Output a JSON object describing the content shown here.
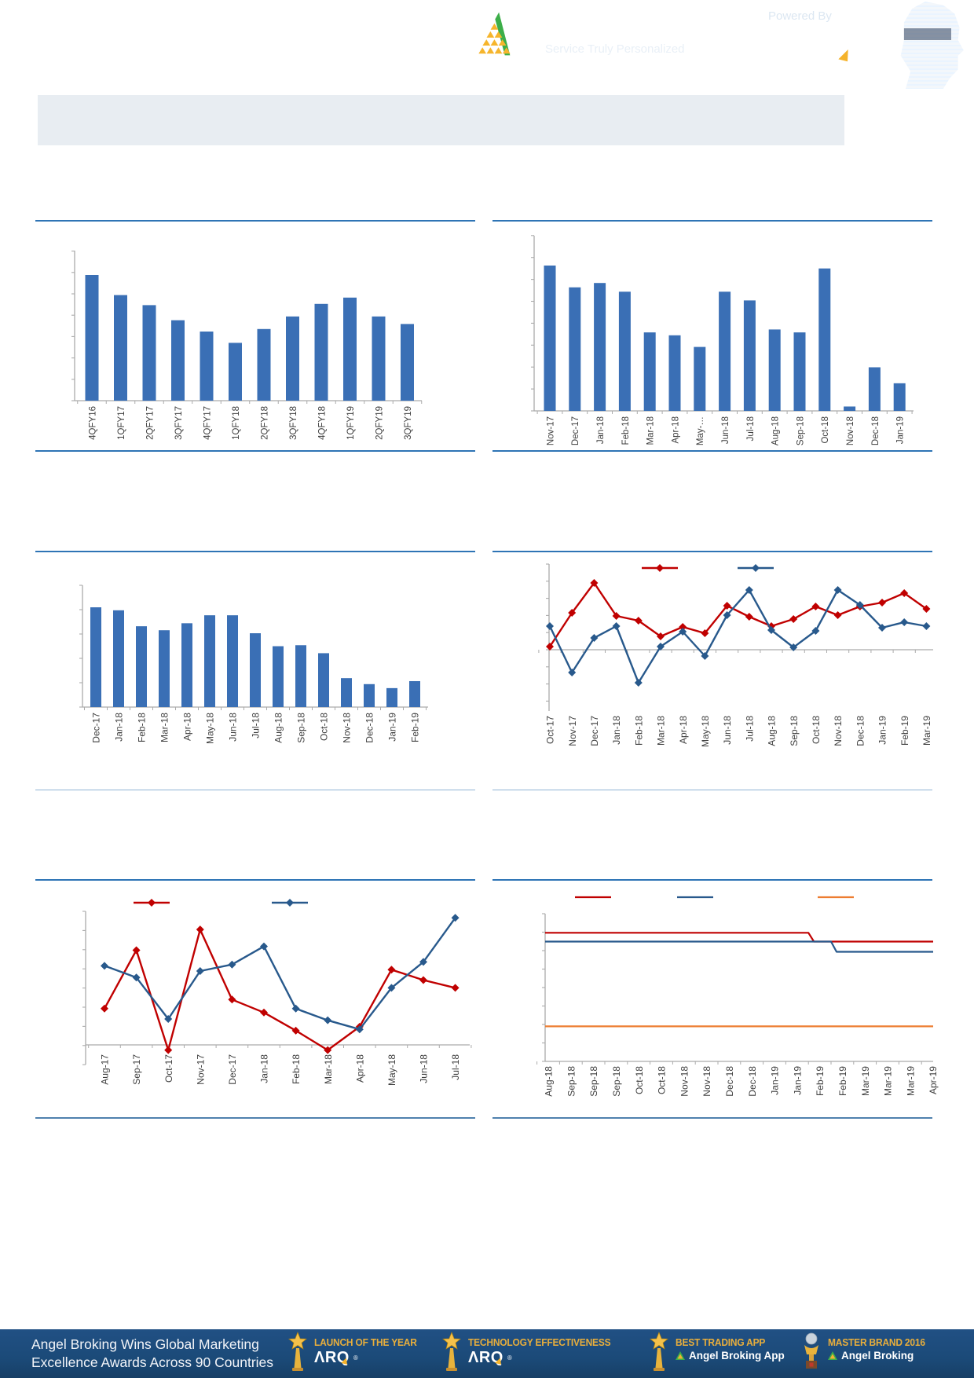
{
  "page": {
    "bg": "#FFFFFF"
  },
  "header": {
    "brand_name": "Angel Broking",
    "brand_reg": "®",
    "tagline": "Service Truly Personalized",
    "powered_by_label": "Powered By",
    "arq_wordmark": "ΛRQ",
    "arq_reg": "®",
    "colors": {
      "bg": "#164A7C",
      "logo_green": "#3CAE49",
      "logo_gold": "#F6B52C",
      "text": "#FFFFFF"
    }
  },
  "title_banner": {
    "text": ""
  },
  "chart_data": [
    {
      "id": "bar-quarterly",
      "type": "bar",
      "title": "",
      "xlabel": "",
      "ylabel": "",
      "yaxis_labels_visible": false,
      "note": "y-axis unlabeled in source; values are relative estimates (tallest bar = 100)",
      "bar_color": "#3A6FB5",
      "categories": [
        "4QFY16",
        "1QFY17",
        "2QFY17",
        "3QFY17",
        "4QFY17",
        "1QFY18",
        "2QFY18",
        "3QFY18",
        "4QFY18",
        "1QFY19",
        "2QFY19",
        "3QFY19"
      ],
      "values": [
        100,
        84,
        76,
        64,
        55,
        46,
        57,
        67,
        77,
        82,
        67,
        61
      ]
    },
    {
      "id": "bar-monthly-nov17-jan19",
      "type": "bar",
      "title": "",
      "xlabel": "",
      "ylabel": "",
      "yaxis_labels_visible": false,
      "note": "y-axis unlabeled in source; values are relative estimates (tallest bar = 100)",
      "bar_color": "#3A6FB5",
      "categories": [
        "Nov-17",
        "Dec-17",
        "Jan-18",
        "Feb-18",
        "Mar-18",
        "Apr-18",
        "May-…",
        "Jun-18",
        "Jul-18",
        "Aug-18",
        "Sep-18",
        "Oct-18",
        "Nov-18",
        "Dec-18",
        "Jan-19"
      ],
      "values": [
        100,
        85,
        88,
        82,
        54,
        52,
        44,
        82,
        76,
        56,
        54,
        98,
        3,
        30,
        19
      ]
    },
    {
      "id": "bar-monthly-dec17-feb19",
      "type": "bar",
      "title": "",
      "xlabel": "",
      "ylabel": "",
      "yaxis_labels_visible": false,
      "note": "y-axis unlabeled in source; values are relative estimates (tallest bar = 100)",
      "bar_color": "#3A6FB5",
      "categories": [
        "Dec-17",
        "Jan-18",
        "Feb-18",
        "Mar-18",
        "Apr-18",
        "May-18",
        "Jun-18",
        "Jul-18",
        "Aug-18",
        "Sep-18",
        "Oct-18",
        "Nov-18",
        "Dec-18",
        "Jan-19",
        "Feb-19"
      ],
      "values": [
        100,
        97,
        81,
        77,
        84,
        92,
        92,
        74,
        61,
        62,
        54,
        29,
        23,
        19,
        26
      ]
    },
    {
      "id": "line-monthly-oct17-mar19",
      "type": "line",
      "title": "",
      "xlabel": "",
      "ylabel": "",
      "yaxis_labels_visible": false,
      "legend_position": "top",
      "legend_labels_visible": false,
      "note": "two-series line chart crossing a zero axis; values estimated in relative units",
      "categories": [
        "Oct-17",
        "Nov-17",
        "Dec-17",
        "Jan-18",
        "Feb-18",
        "Mar-18",
        "Apr-18",
        "May-18",
        "Jun-18",
        "Jul-18",
        "Aug-18",
        "Sep-18",
        "Oct-18",
        "Nov-18",
        "Dec-18",
        "Jan-19",
        "Feb-19",
        "Mar-19"
      ],
      "series": [
        {
          "name": "series-red",
          "color": "#C00000",
          "marker": "diamond",
          "values": [
            4,
            47,
            85,
            43,
            37,
            17,
            29,
            21,
            56,
            42,
            30,
            39,
            55,
            44,
            55,
            60,
            72,
            52
          ]
        },
        {
          "name": "series-blue",
          "color": "#28598C",
          "marker": "diamond",
          "values": [
            30,
            -29,
            15,
            30,
            -42,
            4,
            23,
            -8,
            44,
            76,
            25,
            3,
            24,
            76,
            57,
            28,
            35,
            30
          ]
        }
      ]
    },
    {
      "id": "line-monthly-aug17-jul18",
      "type": "line",
      "title": "",
      "xlabel": "",
      "ylabel": "",
      "yaxis_labels_visible": false,
      "legend_position": "top",
      "legend_labels_visible": false,
      "note": "two-series line chart; red dips slightly below zero at Oct-17 and Mar-18; values estimated",
      "categories": [
        "Aug-17",
        "Sep-17",
        "Oct-17",
        "Nov-17",
        "Dec-17",
        "Jan-18",
        "Feb-18",
        "Mar-18",
        "Apr-18",
        "May-18",
        "Jun-18",
        "Jul-18"
      ],
      "series": [
        {
          "name": "series-red",
          "color": "#C00000",
          "marker": "diamond",
          "values": [
            28,
            73,
            -4,
            89,
            35,
            25,
            11,
            -4,
            14,
            58,
            50,
            44
          ]
        },
        {
          "name": "series-blue",
          "color": "#28598C",
          "marker": "diamond",
          "values": [
            61,
            52,
            20,
            57,
            62,
            76,
            28,
            19,
            12,
            44,
            64,
            98
          ]
        }
      ]
    },
    {
      "id": "line-step-aug18-apr19",
      "type": "line",
      "title": "",
      "xlabel": "",
      "ylabel": "",
      "yaxis_labels_visible": false,
      "legend_position": "top",
      "legend_labels_visible": false,
      "note": "three flat step lines; red steps down near Feb-19, blue steps down just after, orange constant; values estimated",
      "categories": [
        "Aug-18",
        "Sep-18",
        "Sep-18",
        "Sep-18",
        "Oct-18",
        "Oct-18",
        "Nov-18",
        "Nov-18",
        "Dec-18",
        "Dec-18",
        "Jan-19",
        "Jan-19",
        "Feb-19",
        "Feb-19",
        "Mar-19",
        "Mar-19",
        "Mar-19",
        "Apr-19"
      ],
      "series": [
        {
          "name": "series-red",
          "color": "#C00000",
          "marker": "none",
          "values": [
            88,
            88,
            88,
            88,
            88,
            88,
            88,
            88,
            88,
            88,
            88,
            88,
            82,
            82,
            82,
            82,
            82,
            82
          ]
        },
        {
          "name": "series-blue",
          "color": "#28598C",
          "marker": "none",
          "values": [
            82,
            82,
            82,
            82,
            82,
            82,
            82,
            82,
            82,
            82,
            82,
            82,
            82,
            75,
            75,
            75,
            75,
            75
          ]
        },
        {
          "name": "series-orange",
          "color": "#ED7D31",
          "marker": "none",
          "values": [
            24,
            24,
            24,
            24,
            24,
            24,
            24,
            24,
            24,
            24,
            24,
            24,
            24,
            24,
            24,
            24,
            24,
            24
          ]
        }
      ]
    }
  ],
  "footer": {
    "headline_line1": "Angel Broking Wins Global Marketing",
    "headline_line2": "Excellence Awards Across 90 Countries",
    "awards": [
      {
        "title": "LAUNCH OF THE YEAR",
        "subtitle": "ΛRQ",
        "subtitle_reg": "®",
        "icon": "star-trophy-icon"
      },
      {
        "title": "TECHNOLOGY EFFECTIVENESS",
        "subtitle": "ΛRQ",
        "subtitle_reg": "®",
        "icon": "star-trophy-icon"
      },
      {
        "title": "BEST TRADING APP",
        "subtitle": "Angel Broking App",
        "icon": "star-trophy-icon"
      },
      {
        "title": "MASTER BRAND 2016",
        "subtitle": "Angel Broking",
        "icon": "globe-trophy-icon"
      }
    ],
    "colors": {
      "bg": "#1D4E7E",
      "gold": "#E8AE3C",
      "text": "#FFFFFF"
    }
  }
}
